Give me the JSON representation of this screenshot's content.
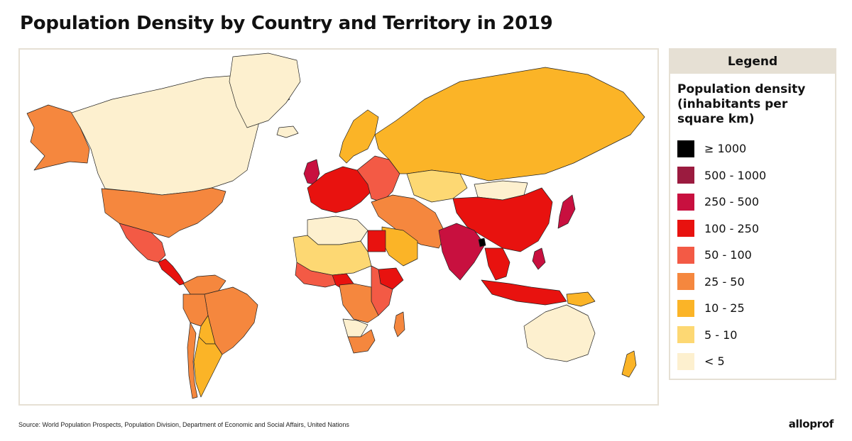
{
  "title": "Population Density by Country and Territory in 2019",
  "legend": {
    "header": "Legend",
    "subtitle_lines": [
      "Population density",
      "(inhabitants per",
      "square km)"
    ],
    "items": [
      {
        "label": "≥ 1000",
        "color": "#000000"
      },
      {
        "label": "500 - 1000",
        "color": "#9b1b3f"
      },
      {
        "label": "250 - 500",
        "color": "#c8103f"
      },
      {
        "label": "100 - 250",
        "color": "#e8120f"
      },
      {
        "label": "50 - 100",
        "color": "#f35a45"
      },
      {
        "label": "25 - 50",
        "color": "#f5873e"
      },
      {
        "label": "10 - 25",
        "color": "#fbb427"
      },
      {
        "label": "5 - 10",
        "color": "#fdd873"
      },
      {
        "label": "< 5",
        "color": "#fdf0cf"
      }
    ]
  },
  "source": "Source: World Population Prospects, Population Division, Department of Economic and Social Affairs, United Nations",
  "logo": "alloprof",
  "regions": [
    {
      "name": "canada",
      "class": "< 5"
    },
    {
      "name": "alaska",
      "class": "25 - 50"
    },
    {
      "name": "greenland",
      "class": "< 5"
    },
    {
      "name": "usa",
      "class": "25 - 50"
    },
    {
      "name": "mexico",
      "class": "50 - 100"
    },
    {
      "name": "central-america",
      "class": "100 - 250"
    },
    {
      "name": "colombia-venezuela",
      "class": "25 - 50"
    },
    {
      "name": "brazil",
      "class": "25 - 50"
    },
    {
      "name": "peru",
      "class": "25 - 50"
    },
    {
      "name": "bolivia",
      "class": "10 - 25"
    },
    {
      "name": "argentina",
      "class": "10 - 25"
    },
    {
      "name": "chile",
      "class": "25 - 50"
    },
    {
      "name": "iceland",
      "class": "< 5"
    },
    {
      "name": "scandinavia",
      "class": "10 - 25"
    },
    {
      "name": "western-europe",
      "class": "100 - 250"
    },
    {
      "name": "uk",
      "class": "250 - 500"
    },
    {
      "name": "eastern-europe",
      "class": "50 - 100"
    },
    {
      "name": "russia",
      "class": "10 - 25"
    },
    {
      "name": "kazakhstan",
      "class": "5 - 10"
    },
    {
      "name": "mongolia",
      "class": "< 5"
    },
    {
      "name": "china",
      "class": "100 - 250"
    },
    {
      "name": "india",
      "class": "250 - 500"
    },
    {
      "name": "bangladesh",
      "class": "≥ 1000"
    },
    {
      "name": "japan",
      "class": "250 - 500"
    },
    {
      "name": "middle-east",
      "class": "25 - 50"
    },
    {
      "name": "saudi-arabia",
      "class": "10 - 25"
    },
    {
      "name": "sahara",
      "class": "5 - 10"
    },
    {
      "name": "egypt",
      "class": "100 - 250"
    },
    {
      "name": "libya-algeria",
      "class": "< 5"
    },
    {
      "name": "west-africa",
      "class": "50 - 100"
    },
    {
      "name": "nigeria",
      "class": "100 - 250"
    },
    {
      "name": "east-africa",
      "class": "50 - 100"
    },
    {
      "name": "ethiopia",
      "class": "100 - 250"
    },
    {
      "name": "central-africa",
      "class": "25 - 50"
    },
    {
      "name": "southern-africa",
      "class": "25 - 50"
    },
    {
      "name": "namibia-botswana",
      "class": "< 5"
    },
    {
      "name": "madagascar",
      "class": "25 - 50"
    },
    {
      "name": "southeast-asia",
      "class": "100 - 250"
    },
    {
      "name": "indonesia",
      "class": "100 - 250"
    },
    {
      "name": "philippines",
      "class": "250 - 500"
    },
    {
      "name": "papua",
      "class": "10 - 25"
    },
    {
      "name": "australia",
      "class": "< 5"
    },
    {
      "name": "new-zealand",
      "class": "10 - 25"
    }
  ]
}
